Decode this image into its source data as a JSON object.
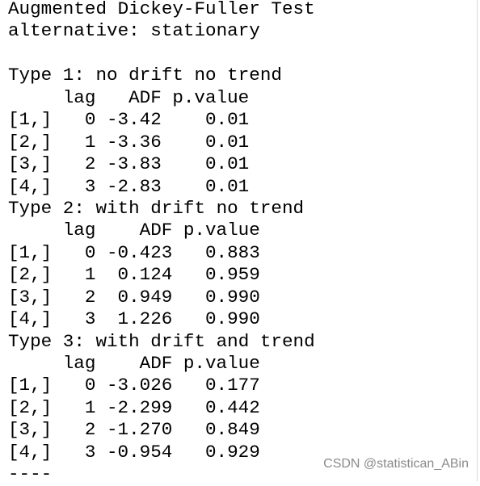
{
  "header": {
    "title": "Augmented Dickey-Fuller Test",
    "alternative": "alternative: stationary"
  },
  "columns": [
    "lag",
    "ADF",
    "p.value"
  ],
  "sections": [
    {
      "title": "Type 1: no drift no trend",
      "rows": [
        [
          "[1,]",
          "0",
          "-3.42",
          "0.01"
        ],
        [
          "[2,]",
          "1",
          "-3.36",
          "0.01"
        ],
        [
          "[3,]",
          "2",
          "-3.83",
          "0.01"
        ],
        [
          "[4,]",
          "3",
          "-2.83",
          "0.01"
        ]
      ]
    },
    {
      "title": "Type 2: with drift no trend",
      "rows": [
        [
          "[1,]",
          "0",
          "-0.423",
          "0.883"
        ],
        [
          "[2,]",
          "1",
          "0.124",
          "0.959"
        ],
        [
          "[3,]",
          "2",
          "0.949",
          "0.990"
        ],
        [
          "[4,]",
          "3",
          "1.226",
          "0.990"
        ]
      ]
    },
    {
      "title": "Type 3: with drift and trend",
      "rows": [
        [
          "[1,]",
          "0",
          "-3.026",
          "0.177"
        ],
        [
          "[2,]",
          "1",
          "-2.299",
          "0.442"
        ],
        [
          "[3,]",
          "2",
          "-1.270",
          "0.849"
        ],
        [
          "[4,]",
          "3",
          "-0.954",
          "0.929"
        ]
      ]
    }
  ],
  "footer": "----",
  "watermark": "CSDN @statistican_ABin"
}
